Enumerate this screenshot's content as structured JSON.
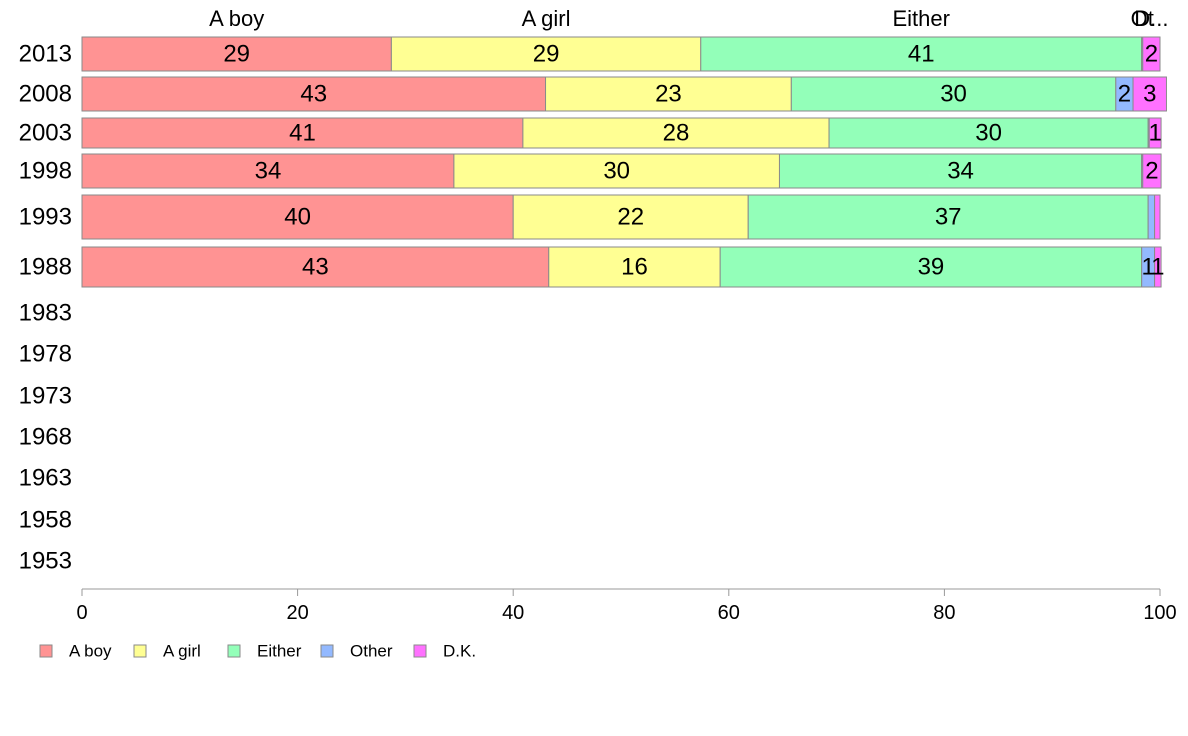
{
  "chart_data": {
    "type": "bar",
    "orientation": "horizontal",
    "stacked": true,
    "categories": [
      "2013",
      "2008",
      "2003",
      "1998",
      "1993",
      "1988",
      "1983",
      "1978",
      "1973",
      "1968",
      "1963",
      "1958",
      "1953"
    ],
    "series": [
      {
        "name": "A boy",
        "color": "#ff9393",
        "values": [
          28.7,
          43.0,
          40.9,
          34.5,
          40.0,
          43.3,
          null,
          null,
          null,
          null,
          null,
          null,
          null
        ]
      },
      {
        "name": "A girl",
        "color": "#ffff93",
        "values": [
          28.7,
          22.8,
          28.4,
          30.2,
          21.8,
          15.9,
          null,
          null,
          null,
          null,
          null,
          null,
          null
        ]
      },
      {
        "name": "Either",
        "color": "#93ffb9",
        "values": [
          40.9,
          30.1,
          29.6,
          33.6,
          37.1,
          39.1,
          null,
          null,
          null,
          null,
          null,
          null,
          null
        ]
      },
      {
        "name": "Other",
        "color": "#93b9ff",
        "values": [
          0.1,
          1.6,
          0.1,
          0.1,
          0.6,
          1.2,
          null,
          null,
          null,
          null,
          null,
          null,
          null
        ]
      },
      {
        "name": "D.K.",
        "color": "#ff71ff",
        "values": [
          1.6,
          3.1,
          1.1,
          1.7,
          0.5,
          0.6,
          null,
          null,
          null,
          null,
          null,
          null,
          null
        ]
      }
    ],
    "segment_labels": [
      [
        "29",
        "29",
        "41",
        "",
        "2"
      ],
      [
        "43",
        "23",
        "30",
        "2",
        "3"
      ],
      [
        "41",
        "28",
        "30",
        "",
        "1"
      ],
      [
        "34",
        "30",
        "34",
        "",
        "2"
      ],
      [
        "40",
        "22",
        "37",
        "",
        ""
      ],
      [
        "43",
        "16",
        "39",
        "1",
        "1"
      ]
    ],
    "top_labels": [
      "A boy",
      "A girl",
      "Either",
      "Ot",
      "D..."
    ],
    "xlim": [
      0,
      100
    ],
    "xticks": [
      "0",
      "20",
      "40",
      "60",
      "80",
      "100"
    ],
    "grid": false,
    "legend_position": "bottom-left"
  }
}
